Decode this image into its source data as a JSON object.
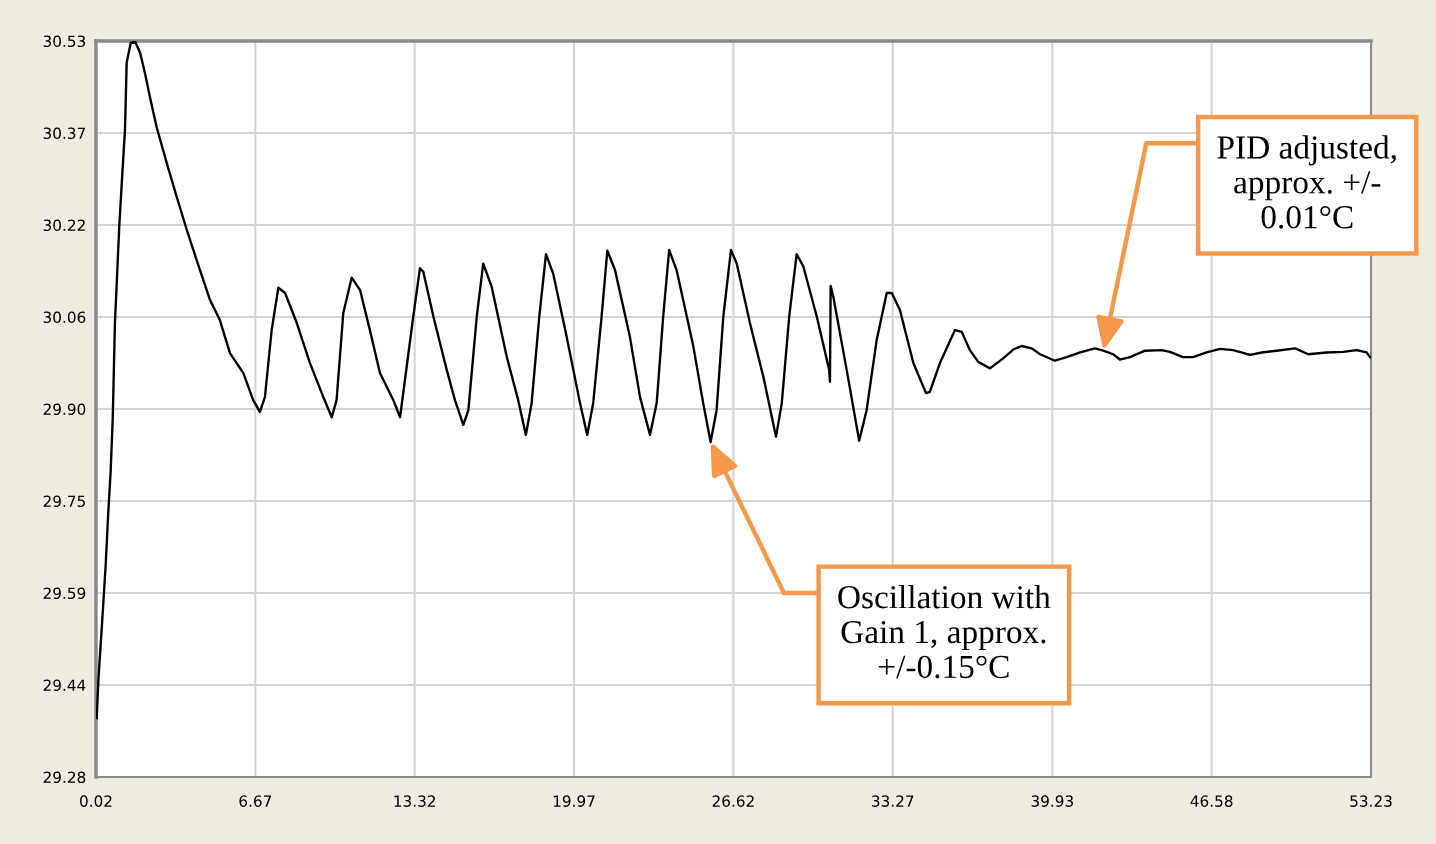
{
  "chart_data": {
    "type": "line",
    "xlim": [
      0.02,
      53.23
    ],
    "xticks": [
      0.02,
      6.67,
      13.32,
      19.97,
      26.62,
      33.27,
      39.93,
      46.58,
      53.23
    ],
    "ylim": [
      29.28,
      30.53
    ],
    "yticks": [
      29.28,
      {
        "value": 29.43625,
        "label": "29.44"
      },
      {
        "value": 29.5925,
        "label": "29.59"
      },
      {
        "value": 29.74875,
        "label": "29.75"
      },
      {
        "value": 29.905,
        "label": "29.90"
      },
      {
        "value": 30.06125,
        "label": "30.06"
      },
      {
        "value": 30.2175,
        "label": "30.22"
      },
      {
        "value": 30.37375,
        "label": "30.37"
      },
      30.53
    ],
    "grid": true,
    "line_style": "solid",
    "series": [
      {
        "color": "#000000",
        "x": [
          0.05,
          0.12,
          0.3,
          0.42,
          0.53,
          0.63,
          0.72,
          0.81,
          0.99,
          1.12,
          1.23,
          1.3,
          1.47,
          1.65,
          1.86,
          2.06,
          2.27,
          2.55,
          2.97,
          3.39,
          3.81,
          4.22,
          4.78,
          5.19,
          5.61,
          6.17,
          6.58,
          6.86,
          7.07,
          7.35,
          7.63,
          7.91,
          8.4,
          8.95,
          9.51,
          9.86,
          10.06,
          10.34,
          10.69,
          11.04,
          11.45,
          11.87,
          12.43,
          12.71,
          13.26,
          13.54,
          13.68,
          14.1,
          14.66,
          15.0,
          15.35,
          15.56,
          15.91,
          16.18,
          16.53,
          17.16,
          17.64,
          17.96,
          18.2,
          18.52,
          18.8,
          19.1,
          19.66,
          20.22,
          20.52,
          20.77,
          21.12,
          21.36,
          21.68,
          22.3,
          22.72,
          23.14,
          23.42,
          23.69,
          23.94,
          24.25,
          24.95,
          25.36,
          25.67,
          25.92,
          26.2,
          26.52,
          26.76,
          27.31,
          27.87,
          28.4,
          28.64,
          28.95,
          29.26,
          29.54,
          30.1,
          30.62,
          30.65,
          30.68,
          30.79,
          31.35,
          31.87,
          32.18,
          32.6,
          33.02,
          33.23,
          33.57,
          34.13,
          34.66,
          34.82,
          35.24,
          35.87,
          36.15,
          36.49,
          36.84,
          37.33,
          37.88,
          38.3,
          38.65,
          39.07,
          39.42,
          40.04,
          40.53,
          41.09,
          41.71,
          42.06,
          42.47,
          42.75,
          43.17,
          43.8,
          44.49,
          44.84,
          45.38,
          45.81,
          46.37,
          46.93,
          47.48,
          48.18,
          48.67,
          49.29,
          50.06,
          50.61,
          51.38,
          52.07,
          52.63,
          53.05,
          53.19
        ],
        "values": [
          29.38,
          29.445,
          29.559,
          29.637,
          29.728,
          29.798,
          29.891,
          30.051,
          30.214,
          30.306,
          30.379,
          30.493,
          30.527,
          30.529,
          30.51,
          30.476,
          30.435,
          30.384,
          30.323,
          30.265,
          30.209,
          30.158,
          30.09,
          30.056,
          30.0,
          29.966,
          29.92,
          29.9,
          29.925,
          30.039,
          30.111,
          30.102,
          30.051,
          29.983,
          29.925,
          29.891,
          29.92,
          30.068,
          30.128,
          30.107,
          30.039,
          29.966,
          29.92,
          29.891,
          30.062,
          30.144,
          30.138,
          30.062,
          29.971,
          29.92,
          29.878,
          29.903,
          30.062,
          30.152,
          30.113,
          29.994,
          29.92,
          29.861,
          29.915,
          30.062,
          30.168,
          30.135,
          30.028,
          29.915,
          29.861,
          29.915,
          30.062,
          30.174,
          30.141,
          30.028,
          29.926,
          29.861,
          29.915,
          30.062,
          30.175,
          30.141,
          30.011,
          29.915,
          29.849,
          29.903,
          30.062,
          30.175,
          30.152,
          30.051,
          29.96,
          29.858,
          29.915,
          30.062,
          30.168,
          30.147,
          30.062,
          29.971,
          29.951,
          30.114,
          30.096,
          29.971,
          29.851,
          29.903,
          30.022,
          30.102,
          30.102,
          30.073,
          29.983,
          29.932,
          29.934,
          29.983,
          30.039,
          30.036,
          30.005,
          29.985,
          29.974,
          29.991,
          30.006,
          30.012,
          30.008,
          29.998,
          29.987,
          29.993,
          30.001,
          30.008,
          30.004,
          29.998,
          29.989,
          29.993,
          30.004,
          30.005,
          30.002,
          29.993,
          29.993,
          30.001,
          30.007,
          30.005,
          29.997,
          30.001,
          30.004,
          30.008,
          29.998,
          30.001,
          30.002,
          30.005,
          30.001,
          29.993
        ]
      }
    ],
    "annotations": [
      {
        "text": "PID adjusted,\napprox. +/-\n0.01°C",
        "x": 42.06,
        "y": 30.004
      },
      {
        "text": "Oscillation with\nGain 1, approx.\n+/-0.15°C",
        "x": 25.67,
        "y": 29.849
      }
    ]
  }
}
